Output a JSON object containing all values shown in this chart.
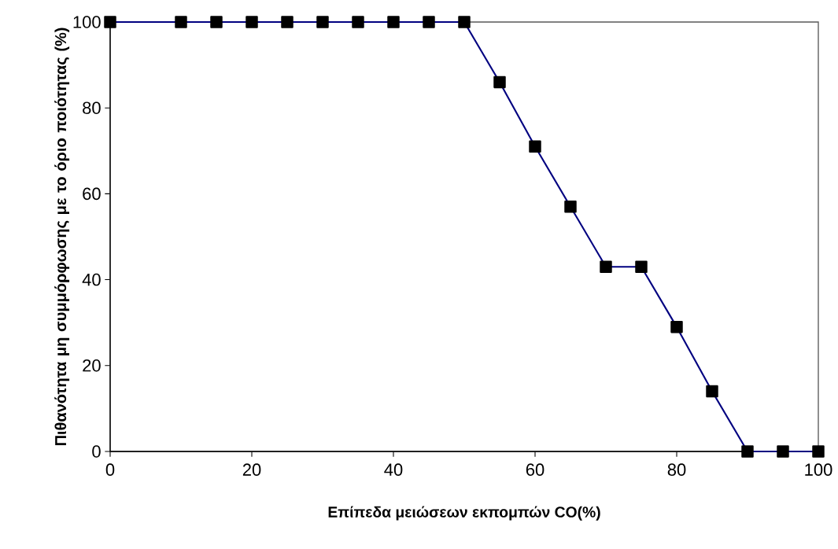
{
  "chart_data": {
    "type": "line",
    "xlabel": "Επίπεδα μειώσεων εκπομπών CO(%)",
    "ylabel": "Πιθανότητα μη συμμόρφωσης με το όριο ποιότητας (%)",
    "x": [
      0,
      10,
      15,
      20,
      25,
      30,
      35,
      40,
      45,
      50,
      55,
      60,
      65,
      70,
      75,
      80,
      85,
      90,
      95,
      100
    ],
    "values": [
      100,
      100,
      100,
      100,
      100,
      100,
      100,
      100,
      100,
      100,
      86,
      71,
      57,
      43,
      43,
      29,
      14,
      0,
      0,
      0
    ],
    "color": "#000080",
    "marker": "square",
    "line_style": "solid",
    "xlim": [
      0,
      100
    ],
    "ylim": [
      0,
      100
    ],
    "xticks": [
      0,
      20,
      40,
      60,
      80,
      100
    ],
    "yticks": [
      0,
      20,
      40,
      60,
      80,
      100
    ]
  }
}
